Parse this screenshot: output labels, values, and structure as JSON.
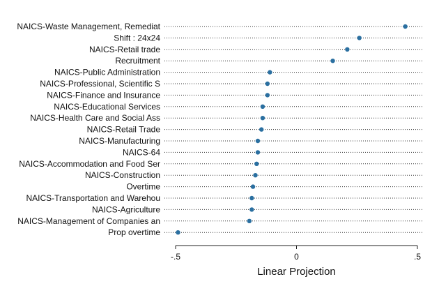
{
  "chart_data": {
    "type": "scatter",
    "subtype": "dot-plot",
    "xlabel": "Linear Projection",
    "xlim": [
      -0.5,
      0.5
    ],
    "xticks": [
      {
        "value": -0.5,
        "label": "-.5"
      },
      {
        "value": 0,
        "label": "0"
      },
      {
        "value": 0.5,
        "label": ".5"
      }
    ],
    "marker_color": "#2a6fa0",
    "categories": [
      "NAICS-Waste Management, Remediat",
      "Shift : 24x24",
      "NAICS-Retail trade",
      "Recruitment",
      "NAICS-Public Administration",
      "NAICS-Professional, Scientific S",
      "NAICS-Finance and Insurance",
      "NAICS-Educational Services",
      "NAICS-Health Care and Social Ass",
      "NAICS-Retail Trade",
      "NAICS-Manufacturing",
      "NAICS-64",
      "NAICS-Accommodation and Food Ser",
      "NAICS-Construction",
      "Overtime",
      "NAICS-Transportation and Warehou",
      "NAICS-Agriculture",
      "NAICS-Management of Companies an",
      "Prop overtime"
    ],
    "values": [
      0.45,
      0.26,
      0.21,
      0.15,
      -0.11,
      -0.12,
      -0.12,
      -0.14,
      -0.14,
      -0.145,
      -0.16,
      -0.16,
      -0.165,
      -0.17,
      -0.18,
      -0.185,
      -0.185,
      -0.195,
      -0.49
    ]
  }
}
